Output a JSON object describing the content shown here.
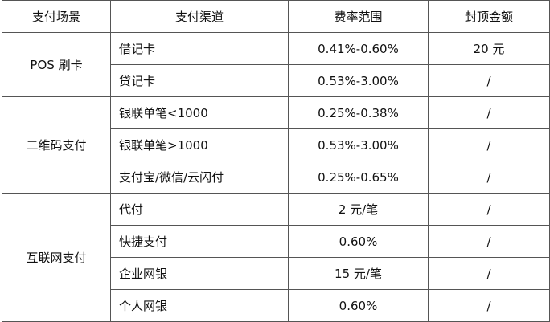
{
  "headers": [
    "支付场景",
    "支付渠道",
    "费率范围",
    "封顶金额"
  ],
  "groups": [
    {
      "scene": "POS 刷卡",
      "rows": [
        {
          "channel": "借记卡",
          "rate": "0.41%-0.60%",
          "cap": "20 元"
        },
        {
          "channel": "贷记卡",
          "rate": "0.53%-3.00%",
          "cap": "/"
        }
      ]
    },
    {
      "scene": "二维码支付",
      "rows": [
        {
          "channel": "银联单笔<1000",
          "rate": "0.25%-0.38%",
          "cap": "/"
        },
        {
          "channel": "银联单笔>1000",
          "rate": "0.53%-3.00%",
          "cap": "/"
        },
        {
          "channel": "支付宝/微信/云闪付",
          "rate": "0.25%-0.65%",
          "cap": "/"
        }
      ]
    },
    {
      "scene": "互联网支付",
      "rows": [
        {
          "channel": "代付",
          "rate": "2 元/笔",
          "cap": "/"
        },
        {
          "channel": "快捷支付",
          "rate": "0.60%",
          "cap": "/"
        },
        {
          "channel": "企业网银",
          "rate": "15 元/笔",
          "cap": "/"
        },
        {
          "channel": "个人网银",
          "rate": "0.60%",
          "cap": "/"
        }
      ]
    }
  ]
}
